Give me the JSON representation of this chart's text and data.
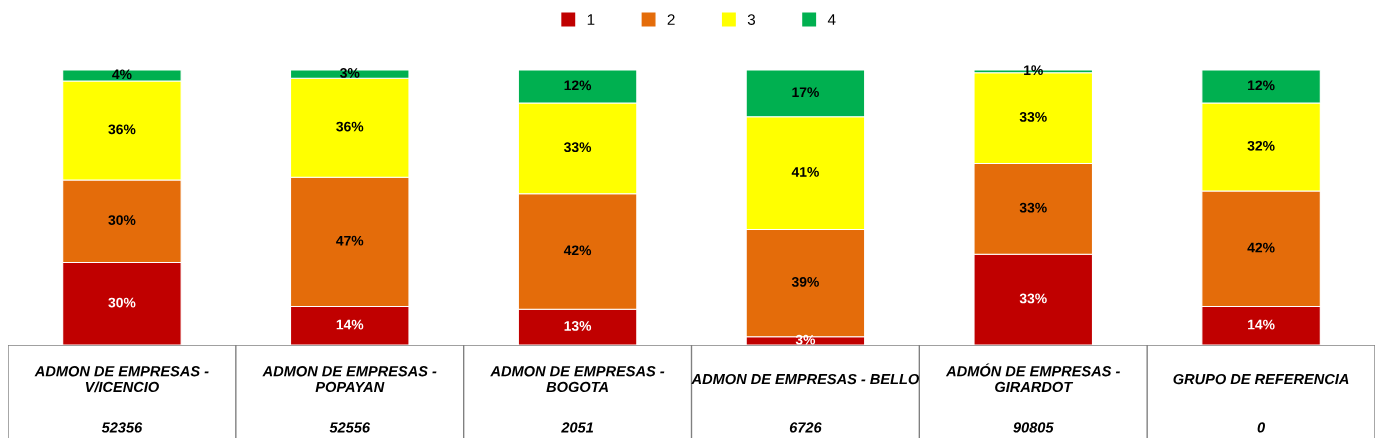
{
  "chart_data": {
    "type": "bar",
    "stacked": true,
    "legend": "top",
    "categories": [
      "ADMON DE EMPRESAS -\nV/ICENCIO",
      "ADMON DE EMPRESAS -\nPOPAYAN",
      "ADMON DE EMPRESAS -\nBOGOTA",
      "ADMON DE EMPRESAS - BELLO",
      "ADMÓN DE EMPRESAS -\nGIRARDOT",
      "GRUPO DE REFERENCIA"
    ],
    "series": [
      {
        "name": "1",
        "color": "#c00000",
        "values": [
          30,
          14,
          13,
          3,
          33,
          14
        ],
        "value_labels": [
          "30%",
          "14%",
          "13%",
          "3%",
          "33%",
          "14%"
        ]
      },
      {
        "name": "2",
        "color": "#e46c0a",
        "values": [
          30,
          47,
          42,
          39,
          33,
          42
        ],
        "value_labels": [
          "30%",
          "47%",
          "42%",
          "39%",
          "33%",
          "42%"
        ]
      },
      {
        "name": "3",
        "color": "#ffff00",
        "values": [
          36,
          36,
          33,
          41,
          33,
          32
        ],
        "value_labels": [
          "36%",
          "36%",
          "33%",
          "41%",
          "33%",
          "32%"
        ]
      },
      {
        "name": "4",
        "color": "#00b050",
        "values": [
          4,
          3,
          12,
          17,
          1,
          12
        ],
        "value_labels": [
          "4%",
          "3%",
          "12%",
          "17%",
          "1%",
          "12%"
        ]
      }
    ],
    "annotations": [
      "52356",
      "52556",
      "2051",
      "6726",
      "90805",
      "0"
    ]
  }
}
